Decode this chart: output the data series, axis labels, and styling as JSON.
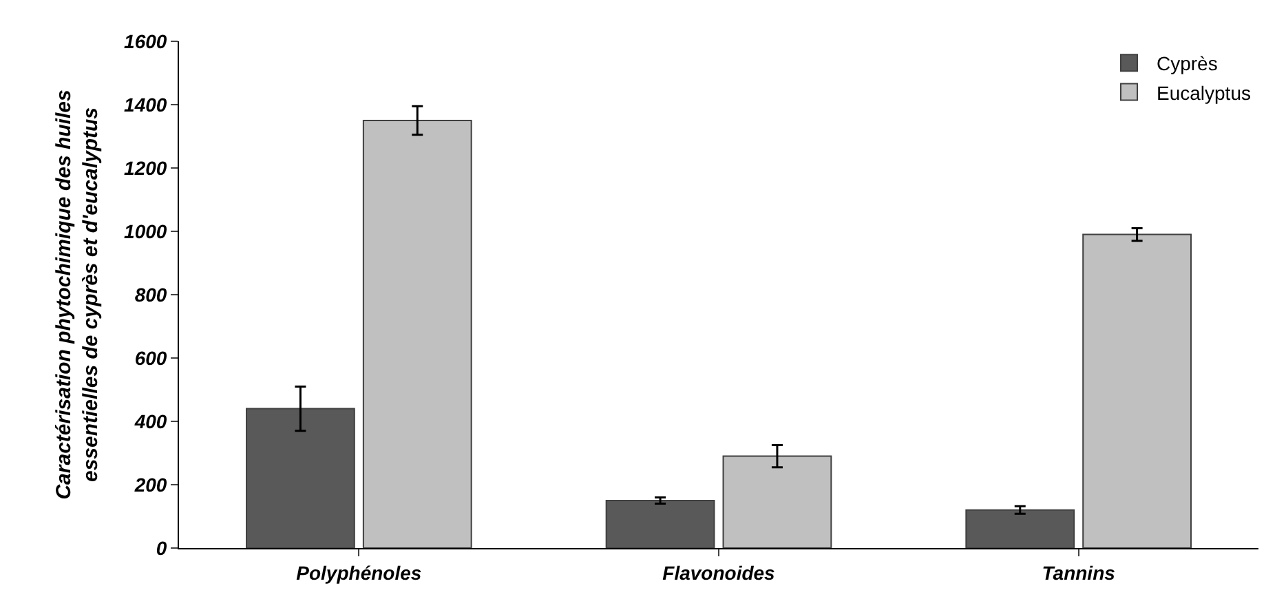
{
  "chart_data": {
    "type": "bar",
    "ylabel": "Caractérisation phytochimique des huiles\nessentielles de cyprès et d'eucalyptus",
    "categories": [
      "Polyphénoles",
      "Flavonoides",
      "Tannins"
    ],
    "series": [
      {
        "name": "Cyprès",
        "color": "#595959",
        "values": [
          440,
          150,
          120
        ],
        "errors": [
          70,
          10,
          12
        ]
      },
      {
        "name": "Eucalyptus",
        "color": "#c0c0c0",
        "values": [
          1350,
          290,
          990
        ],
        "errors": [
          45,
          35,
          20
        ]
      }
    ],
    "ylim": [
      0,
      1600
    ],
    "yticks": [
      0,
      200,
      400,
      600,
      800,
      1000,
      1200,
      1400,
      1600
    ],
    "grid": false,
    "legend": "top right"
  }
}
